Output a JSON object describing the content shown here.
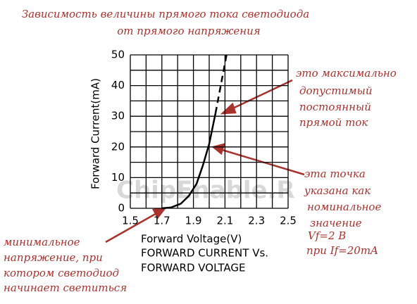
{
  "chart_data": {
    "type": "line",
    "title": [
      "Зависимость величины прямого тока светодиода",
      "от  прямого напряжения"
    ],
    "xlabel": "Forward Voltage(V)",
    "ylabel": "Forward Current(mA)",
    "subtitle": [
      "FORWARD CURRENT Vs.",
      "FORWARD VOLTAGE"
    ],
    "xlim": [
      1.5,
      2.5
    ],
    "ylim": [
      0,
      50
    ],
    "xticks": [
      1.5,
      1.7,
      1.9,
      2.1,
      2.3,
      2.5
    ],
    "yticks": [
      0,
      10,
      20,
      30,
      40,
      50
    ],
    "xgrid": [
      1.5,
      1.6,
      1.7,
      1.8,
      1.9,
      2.0,
      2.1,
      2.2,
      2.3,
      2.4,
      2.5
    ],
    "ygrid": [
      0,
      5,
      10,
      15,
      20,
      25,
      30,
      35,
      40,
      45,
      50
    ],
    "series": [
      {
        "color": "#000000",
        "dash": false,
        "x": [
          1.7,
          1.76,
          1.82,
          1.87,
          1.92,
          1.96,
          2.0,
          2.04
        ],
        "values": [
          0,
          0.3,
          1.5,
          4,
          8,
          14,
          21,
          31
        ]
      },
      {
        "color": "#000000",
        "dash": true,
        "x": [
          2.04,
          2.11
        ],
        "values": [
          31,
          50
        ]
      }
    ],
    "annotations": [
      {
        "lines": [
          "это максимально",
          "допустимый",
          "постоянный",
          "прямой ток"
        ]
      },
      {
        "lines": [
          "эта точка",
          "указана как",
          "номинальное",
          "значение",
          "Vf=2 В",
          "при If=20mA"
        ]
      },
      {
        "lines": [
          "минимальное",
          "напряжение, при",
          "котором светодиод",
          "начинает светиться"
        ]
      }
    ],
    "watermark": "ChipEnable.R"
  }
}
